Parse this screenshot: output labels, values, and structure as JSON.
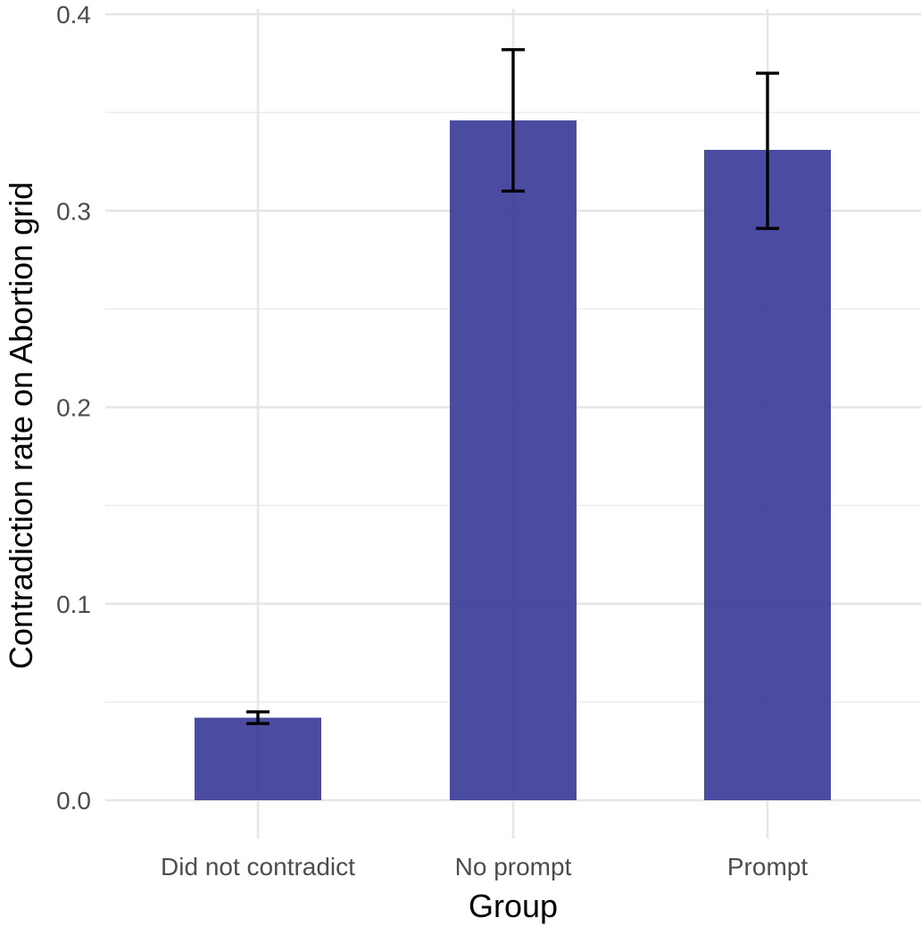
{
  "chart_data": {
    "type": "bar",
    "title": "",
    "xlabel": "Group",
    "ylabel": "Contradiction rate on Abortion grid",
    "categories": [
      "Did not contradict",
      "No prompt",
      "Prompt"
    ],
    "values": [
      0.042,
      0.346,
      0.331
    ],
    "error_low": [
      0.039,
      0.31,
      0.291
    ],
    "error_high": [
      0.045,
      0.382,
      0.37
    ],
    "ylim": [
      0,
      0.4
    ],
    "yticks": [
      0.0,
      0.1,
      0.2,
      0.3,
      0.4
    ],
    "ytick_labels": [
      "0.0",
      "0.1",
      "0.2",
      "0.3",
      "0.4"
    ],
    "bar_color": "#3c3c9a",
    "grid": true,
    "legend": "none"
  }
}
